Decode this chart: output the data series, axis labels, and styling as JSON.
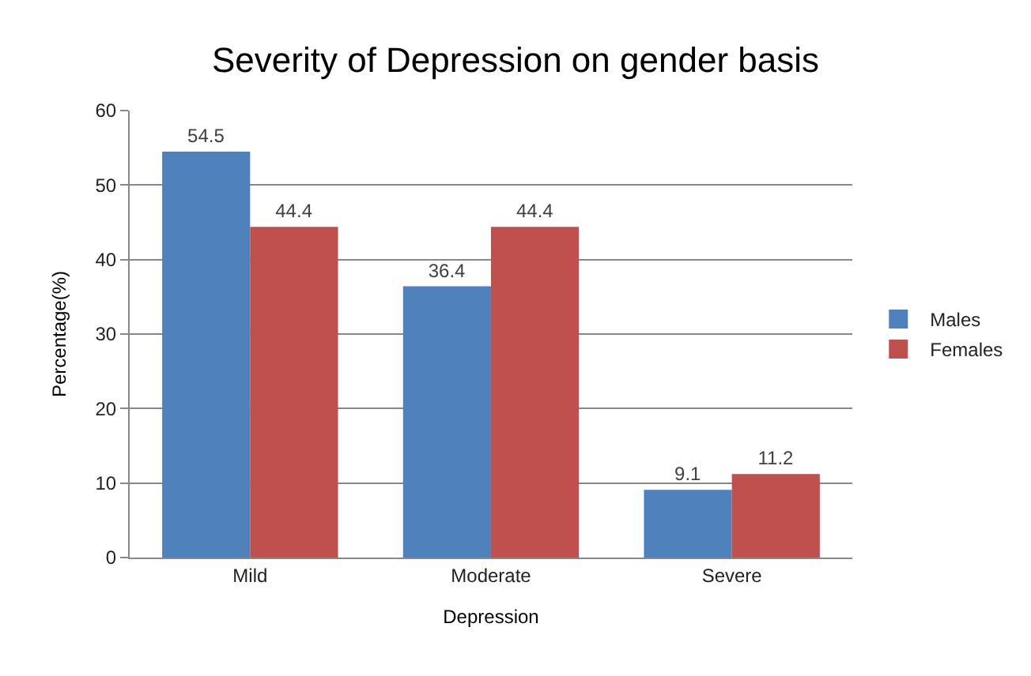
{
  "chart_data": {
    "type": "bar",
    "title": "Severity of Depression on gender basis",
    "xlabel": "Depression",
    "ylabel": "Percentage(%)",
    "categories": [
      "Mild",
      "Moderate",
      "Severe"
    ],
    "series": [
      {
        "name": "Males",
        "color": "#4f81bd",
        "values": [
          54.5,
          36.4,
          9.1
        ]
      },
      {
        "name": "Females",
        "color": "#c0504d",
        "values": [
          44.4,
          44.4,
          11.2
        ]
      }
    ],
    "ylim": [
      0,
      60
    ],
    "yticks": [
      0,
      10,
      20,
      30,
      40,
      50,
      60
    ],
    "grid": "y",
    "legend": "right",
    "data_labels": true
  }
}
